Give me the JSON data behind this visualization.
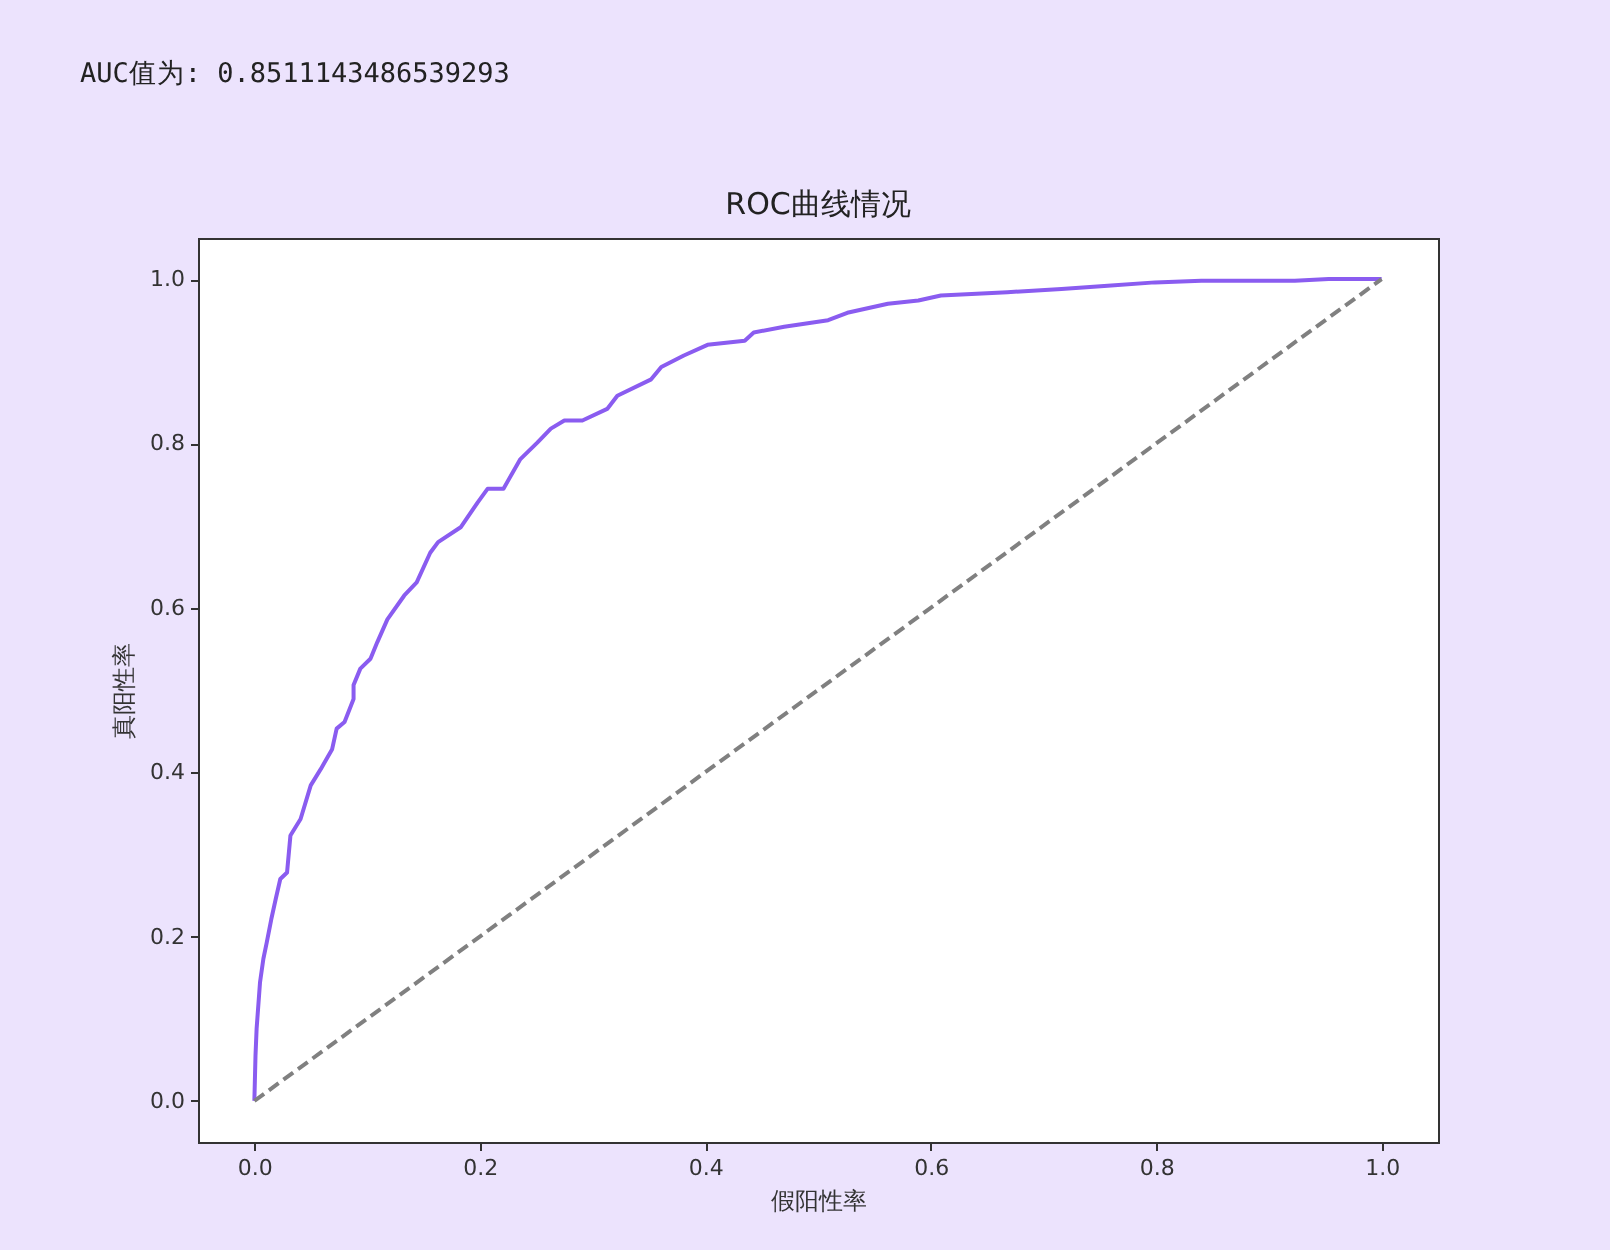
{
  "chart_data": {
    "type": "line",
    "title": "ROC曲线情况",
    "xlabel": "假阳性率",
    "ylabel": "真阳性率",
    "annotations": [
      "AUC值为: 0.8511143486539293"
    ],
    "xlim": [
      -0.05,
      1.05
    ],
    "ylim": [
      -0.05,
      1.05
    ],
    "xticks": [
      {
        "value": 0,
        "label": "0.0"
      },
      0.2,
      0.4,
      0.6,
      0.8,
      {
        "value": 1,
        "label": "1.0"
      }
    ],
    "yticks": [
      {
        "value": 0,
        "label": "0.0"
      },
      0.2,
      0.4,
      0.6,
      0.8,
      {
        "value": 1,
        "label": "1.0"
      }
    ],
    "grid": false,
    "series": [
      {
        "color": "#8a5cf0",
        "line_style": "solid",
        "x": [
          0,
          0.001,
          0.002,
          0.005,
          0.008,
          0.011,
          0.015,
          0.019,
          0.023,
          0.029,
          0.032,
          0.041,
          0.05,
          0.059,
          0.069,
          0.073,
          0.08,
          0.088,
          0.088,
          0.094,
          0.103,
          0.109,
          0.118,
          0.133,
          0.144,
          0.156,
          0.163,
          0.183,
          0.198,
          0.207,
          0.221,
          0.236,
          0.251,
          0.263,
          0.275,
          0.291,
          0.313,
          0.322,
          0.352,
          0.361,
          0.381,
          0.402,
          0.435,
          0.443,
          0.47,
          0.509,
          0.526,
          0.562,
          0.589,
          0.609,
          0.668,
          0.716,
          0.757,
          0.799,
          0.84,
          0.923,
          0.953,
          1.0
        ],
        "values": [
          0,
          0.055,
          0.088,
          0.144,
          0.173,
          0.193,
          0.221,
          0.246,
          0.27,
          0.278,
          0.323,
          0.343,
          0.384,
          0.404,
          0.428,
          0.453,
          0.461,
          0.489,
          0.506,
          0.526,
          0.538,
          0.558,
          0.586,
          0.615,
          0.631,
          0.667,
          0.68,
          0.698,
          0.728,
          0.745,
          0.745,
          0.781,
          0.801,
          0.818,
          0.828,
          0.828,
          0.842,
          0.858,
          0.878,
          0.893,
          0.907,
          0.92,
          0.925,
          0.935,
          0.942,
          0.95,
          0.959,
          0.97,
          0.974,
          0.98,
          0.984,
          0.988,
          0.992,
          0.996,
          0.998,
          0.998,
          1.0,
          1.0
        ]
      },
      {
        "type": "line",
        "color": "#808080",
        "line_style": "dashed",
        "x": [
          0,
          1
        ],
        "values": [
          0,
          1
        ]
      }
    ]
  }
}
